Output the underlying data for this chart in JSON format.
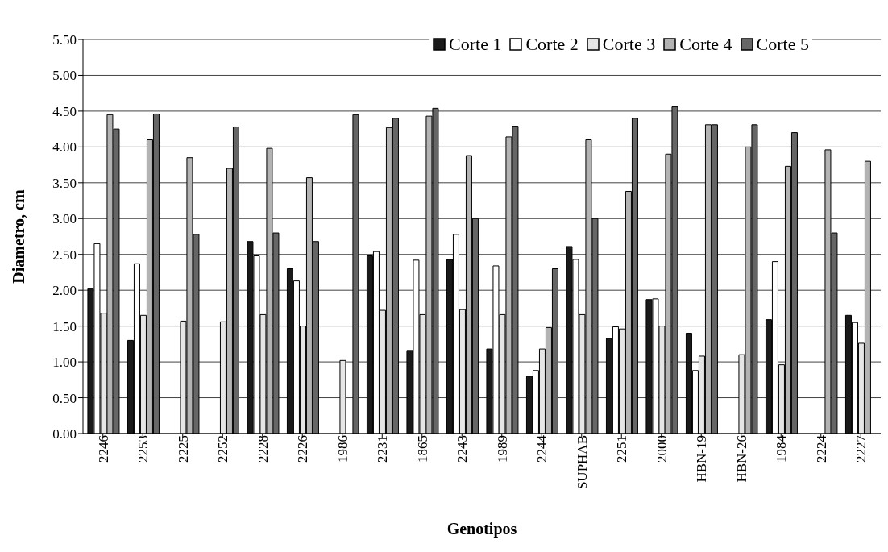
{
  "chart_data": {
    "type": "bar",
    "xlabel": "Genotipos",
    "ylabel": "Diametro, cm",
    "categories": [
      "2246",
      "2253",
      "2225",
      "2252",
      "2228",
      "2226",
      "1986",
      "2231",
      "1865",
      "2243",
      "1989",
      "2244",
      "SUPHAB",
      "2251",
      "2000",
      "HBN-19",
      "HBN-26",
      "1984",
      "2224",
      "2227"
    ],
    "series": [
      {
        "name": "Corte 1",
        "color": "#1a1a1a",
        "values": [
          2.02,
          1.3,
          null,
          null,
          2.68,
          2.3,
          null,
          2.48,
          1.16,
          2.43,
          1.18,
          0.8,
          2.61,
          1.33,
          1.87,
          1.4,
          null,
          1.59,
          null,
          1.65
        ]
      },
      {
        "name": "Corte 2",
        "color": "#ffffff",
        "values": [
          2.65,
          2.37,
          null,
          null,
          2.48,
          2.13,
          null,
          2.54,
          2.42,
          2.78,
          2.34,
          0.88,
          2.43,
          1.49,
          1.88,
          0.88,
          null,
          2.4,
          null,
          1.55
        ]
      },
      {
        "name": "Corte 3",
        "color": "#e6e6e6",
        "values": [
          1.68,
          1.65,
          1.57,
          1.56,
          1.66,
          1.5,
          1.02,
          1.72,
          1.66,
          1.73,
          1.66,
          1.18,
          1.66,
          1.46,
          1.5,
          1.08,
          1.1,
          0.96,
          null,
          1.26
        ]
      },
      {
        "name": "Corte 4",
        "color": "#b3b3b3",
        "values": [
          4.45,
          4.1,
          3.85,
          3.7,
          3.98,
          3.57,
          null,
          4.27,
          4.43,
          3.88,
          4.14,
          1.48,
          4.1,
          3.38,
          3.9,
          4.31,
          4.0,
          3.73,
          3.96,
          3.8
        ]
      },
      {
        "name": "Corte 5",
        "color": "#666666",
        "values": [
          4.25,
          4.46,
          2.78,
          4.28,
          2.8,
          2.68,
          4.45,
          4.4,
          4.54,
          3.0,
          4.29,
          2.3,
          3.0,
          4.4,
          4.56,
          4.31,
          4.31,
          4.2,
          2.8,
          null
        ]
      }
    ],
    "ylim": [
      0,
      5.5
    ],
    "yticks": [
      {
        "value": 0,
        "label": "0.00"
      },
      {
        "value": 0.5,
        "label": "0.50"
      },
      {
        "value": 1,
        "label": "1.00"
      },
      {
        "value": 1.5,
        "label": "1.50"
      },
      {
        "value": 2,
        "label": "2.00"
      },
      {
        "value": 2.5,
        "label": "2.50"
      },
      {
        "value": 3,
        "label": "3.00"
      },
      {
        "value": 3.5,
        "label": "3.50"
      },
      {
        "value": 4,
        "label": "4.00"
      },
      {
        "value": 4.5,
        "label": "4.50"
      },
      {
        "value": 5,
        "label": "5.00"
      },
      {
        "value": 5.5,
        "label": "5.50"
      }
    ],
    "grid": "y",
    "legend": "top right"
  }
}
